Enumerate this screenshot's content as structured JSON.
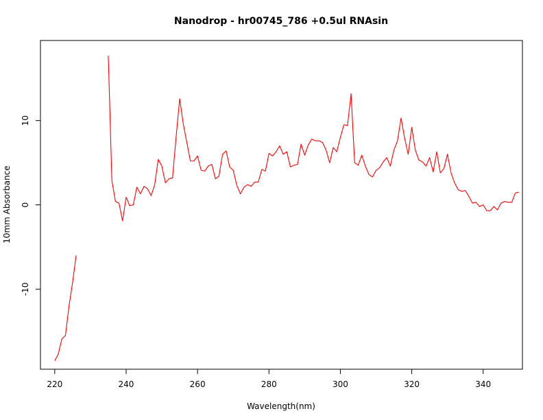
{
  "chart_data": {
    "type": "line",
    "title": "Nanodrop - hr00745_786 +0.5ul RNAsin",
    "xlabel": "Wavelength(nm)",
    "ylabel": "10mm Absorbance",
    "xlim": [
      216,
      351
    ],
    "ylim": [
      -19.5,
      19.5
    ],
    "x_ticks": [
      220,
      240,
      260,
      280,
      300,
      320,
      340
    ],
    "y_ticks": [
      -10,
      0,
      10
    ],
    "grid": false,
    "legend": "none",
    "line_color": "#ff0000",
    "series": [
      {
        "segments": [
          {
            "x": [
              220,
              221,
              222,
              223,
              224,
              225,
              226
            ],
            "y": [
              -18.5,
              -17.7,
              -15.9,
              -15.5,
              -12.0,
              -9.2,
              -6.0
            ]
          },
          {
            "x": [
              235,
              236,
              237,
              238,
              239,
              240,
              241,
              242,
              243,
              244,
              245,
              246,
              247,
              248,
              249,
              250,
              251,
              252,
              253,
              254,
              255,
              256,
              257,
              258,
              259,
              260,
              261,
              262,
              263,
              264,
              265,
              266,
              267,
              268,
              269,
              270,
              271,
              272,
              273,
              274,
              275,
              276,
              277,
              278,
              279,
              280,
              281,
              282,
              283,
              284,
              285,
              286,
              287,
              288,
              289,
              290,
              291,
              292,
              293,
              294,
              295,
              296,
              297,
              298,
              299,
              300,
              301,
              302,
              303,
              304,
              305,
              306,
              307,
              308,
              309,
              310,
              311,
              312,
              313,
              314,
              315,
              316,
              317,
              318,
              319,
              320,
              321,
              322,
              323,
              324,
              325,
              326,
              327,
              328,
              329,
              330,
              331,
              332,
              333,
              334,
              335,
              336,
              337,
              338,
              339,
              340,
              341,
              342,
              343,
              344,
              345,
              346,
              347,
              348,
              349,
              350
            ],
            "y": [
              17.7,
              2.9,
              0.4,
              0.2,
              -1.9,
              0.9,
              -0.1,
              0.0,
              2.1,
              1.3,
              2.2,
              1.9,
              1.1,
              2.4,
              5.4,
              4.6,
              2.6,
              3.1,
              3.2,
              8.1,
              12.6,
              9.6,
              7.4,
              5.2,
              5.2,
              5.8,
              4.1,
              4.0,
              4.6,
              4.8,
              3.1,
              3.4,
              6.0,
              6.4,
              4.5,
              4.1,
              2.3,
              1.3,
              2.1,
              2.4,
              2.2,
              2.7,
              2.7,
              4.2,
              4.0,
              6.1,
              5.8,
              6.3,
              7.0,
              6.0,
              6.3,
              4.5,
              4.7,
              4.8,
              7.2,
              5.9,
              7.1,
              7.8,
              7.6,
              7.6,
              7.4,
              6.5,
              5.0,
              6.8,
              6.3,
              8.0,
              9.5,
              9.4,
              13.2,
              5.0,
              4.7,
              5.9,
              4.6,
              3.6,
              3.3,
              4.1,
              4.4,
              5.1,
              5.6,
              4.6,
              6.5,
              7.6,
              10.3,
              7.9,
              6.0,
              9.2,
              6.5,
              5.3,
              5.1,
              4.6,
              5.6,
              3.9,
              6.3,
              3.8,
              4.3,
              6.0,
              3.8,
              2.6,
              1.8,
              1.6,
              1.7,
              1.0,
              0.2,
              0.3,
              -0.2,
              0.0,
              -0.7,
              -0.7,
              -0.2,
              -0.6,
              0.2,
              0.4,
              0.3,
              0.3,
              1.4,
              1.5
            ]
          }
        ]
      }
    ]
  }
}
